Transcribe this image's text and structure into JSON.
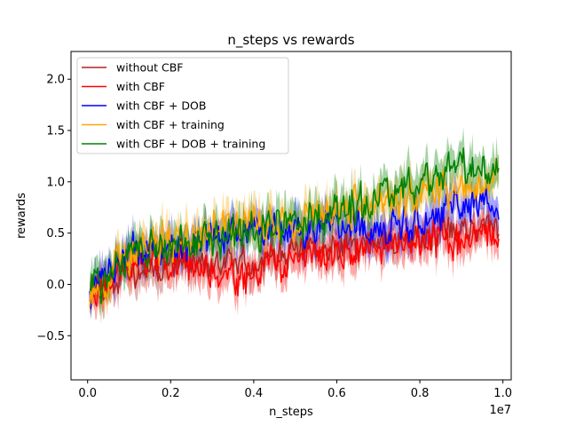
{
  "chart_data": {
    "type": "line",
    "title": "n_steps vs rewards",
    "xlabel": "n_steps",
    "ylabel": "rewards",
    "x_offset_label": "1e7",
    "xlim": [
      -0.04,
      1.02
    ],
    "ylim": [
      -0.93,
      2.27
    ],
    "x_scale": 10000000,
    "xticks": [
      0.0,
      0.2,
      0.4,
      0.6,
      0.8,
      1.0
    ],
    "xtick_labels": [
      "0.0",
      "0.2",
      "0.4",
      "0.6",
      "0.8",
      "1.0"
    ],
    "yticks": [
      -0.5,
      0.0,
      0.5,
      1.0,
      1.5,
      2.0
    ],
    "ytick_labels": [
      "−0.5",
      "0.0",
      "0.5",
      "1.0",
      "1.5",
      "2.0"
    ],
    "x_range": [
      0.005,
      0.99
    ],
    "n_points": 360,
    "legend_position": "upper-left",
    "series": [
      {
        "name": "without CBF",
        "color": "#b22222",
        "band_alpha": 0.35,
        "seed": 11,
        "wiggle": 0.17,
        "band_width": 0.14,
        "trend_x": [
          0.0,
          0.1,
          0.2,
          0.3,
          0.4,
          0.5,
          0.6,
          0.7,
          0.8,
          0.9,
          0.99
        ],
        "trend_y": [
          -0.05,
          0.12,
          0.22,
          0.18,
          0.22,
          0.3,
          0.35,
          0.42,
          0.48,
          0.52,
          0.55
        ]
      },
      {
        "name": "with CBF",
        "color": "#ff0000",
        "band_alpha": 0.35,
        "seed": 23,
        "wiggle": 0.2,
        "band_width": 0.14,
        "trend_x": [
          0.0,
          0.1,
          0.2,
          0.3,
          0.4,
          0.5,
          0.6,
          0.7,
          0.8,
          0.9,
          0.99
        ],
        "trend_y": [
          -0.1,
          0.2,
          0.25,
          0.1,
          0.12,
          0.25,
          0.3,
          0.35,
          0.4,
          0.45,
          0.5
        ]
      },
      {
        "name": "with CBF + DOB",
        "color": "#0000ff",
        "band_alpha": 0.35,
        "seed": 37,
        "wiggle": 0.2,
        "band_width": 0.15,
        "trend_x": [
          0.0,
          0.1,
          0.2,
          0.3,
          0.4,
          0.5,
          0.6,
          0.7,
          0.8,
          0.9,
          0.99
        ],
        "trend_y": [
          -0.05,
          0.3,
          0.35,
          0.45,
          0.5,
          0.55,
          0.55,
          0.55,
          0.6,
          0.75,
          0.8
        ]
      },
      {
        "name": "with CBF + training",
        "color": "#ffa500",
        "band_alpha": 0.35,
        "seed": 53,
        "wiggle": 0.22,
        "band_width": 0.15,
        "trend_x": [
          0.0,
          0.1,
          0.2,
          0.3,
          0.4,
          0.5,
          0.6,
          0.7,
          0.8,
          0.9,
          0.99
        ],
        "trend_y": [
          -0.1,
          0.3,
          0.4,
          0.55,
          0.6,
          0.65,
          0.75,
          0.8,
          0.85,
          0.95,
          1.0
        ]
      },
      {
        "name": "with CBF + DOB + training",
        "color": "#008000",
        "band_alpha": 0.35,
        "seed": 71,
        "wiggle": 0.22,
        "band_width": 0.16,
        "trend_x": [
          0.0,
          0.1,
          0.2,
          0.3,
          0.4,
          0.5,
          0.6,
          0.7,
          0.8,
          0.9,
          0.99
        ],
        "trend_y": [
          -0.05,
          0.3,
          0.35,
          0.45,
          0.5,
          0.6,
          0.7,
          0.85,
          1.0,
          1.1,
          1.05
        ]
      }
    ]
  }
}
